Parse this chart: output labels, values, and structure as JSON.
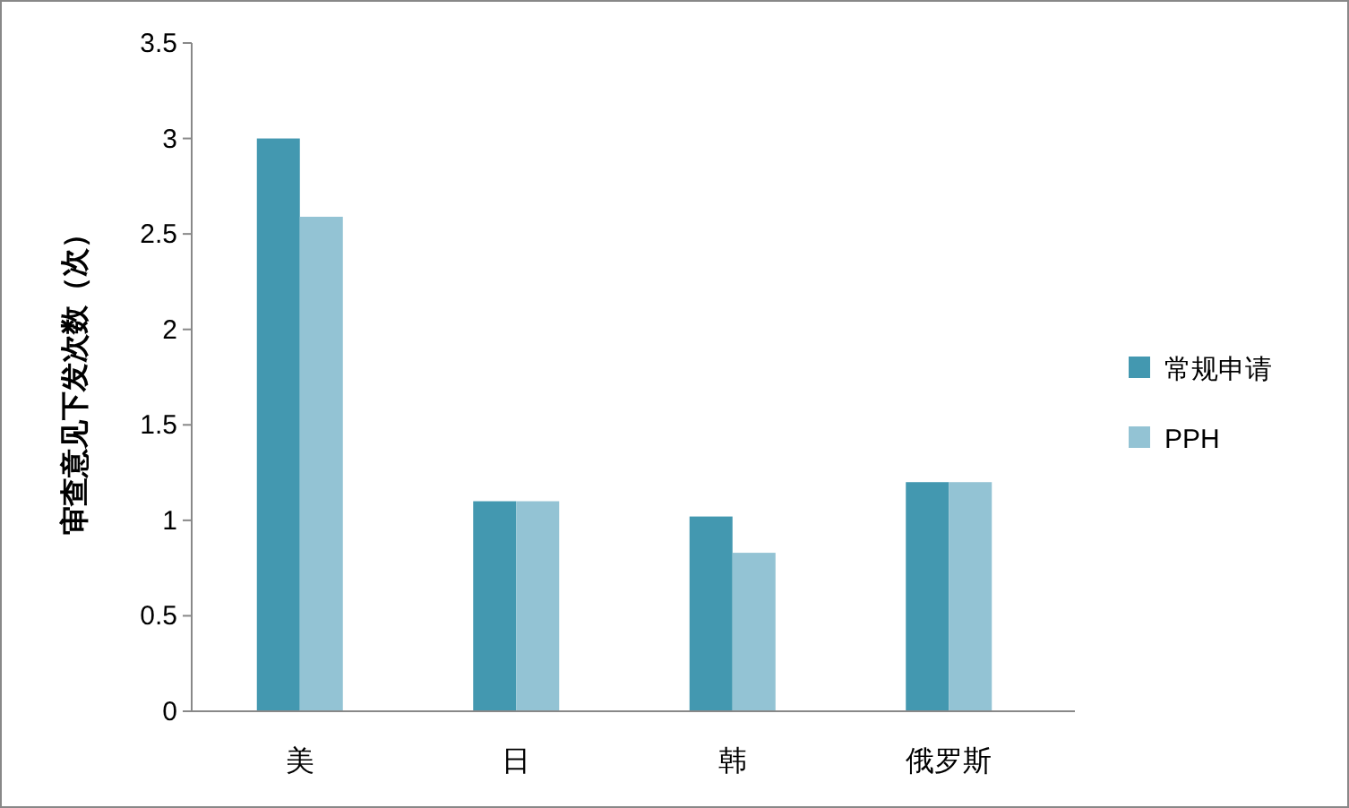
{
  "chart_data": {
    "type": "bar",
    "ylabel": "审查意见下发次数（次）",
    "categories": [
      "美",
      "日",
      "韩",
      "俄罗斯"
    ],
    "series": [
      {
        "name": "常规申请",
        "color": "#4398b0",
        "values": [
          3.0,
          1.1,
          1.02,
          1.2
        ]
      },
      {
        "name": "PPH",
        "color": "#93c3d4",
        "values": [
          2.59,
          1.1,
          0.83,
          1.2
        ]
      }
    ],
    "ylim": [
      0,
      3.5
    ],
    "yticks": [
      0,
      0.5,
      1,
      1.5,
      2,
      2.5,
      3,
      3.5
    ],
    "grid": false,
    "legend": "right"
  }
}
